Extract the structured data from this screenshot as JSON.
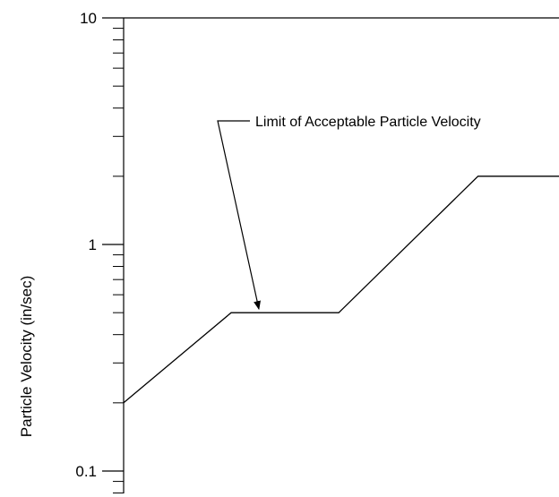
{
  "chart_data": {
    "type": "line",
    "title": "",
    "xlabel": "",
    "ylabel": "Particle Velocity (in/sec)",
    "yscale": "log",
    "ylim": [
      0.1,
      10
    ],
    "y_tick_labels": [
      "10",
      "1",
      "0.1"
    ],
    "grid": false,
    "series": [
      {
        "x": [
          0,
          0.247,
          0.494,
          0.814,
          1
        ],
        "y": [
          0.2,
          0.5,
          0.5,
          2.0,
          2.0
        ]
      }
    ],
    "annotations": [
      {
        "text": "Limit of Acceptable Particle Velocity",
        "points_to_y": 0.5
      }
    ],
    "colors": {
      "line": "#000000",
      "axis": "#000000"
    }
  }
}
